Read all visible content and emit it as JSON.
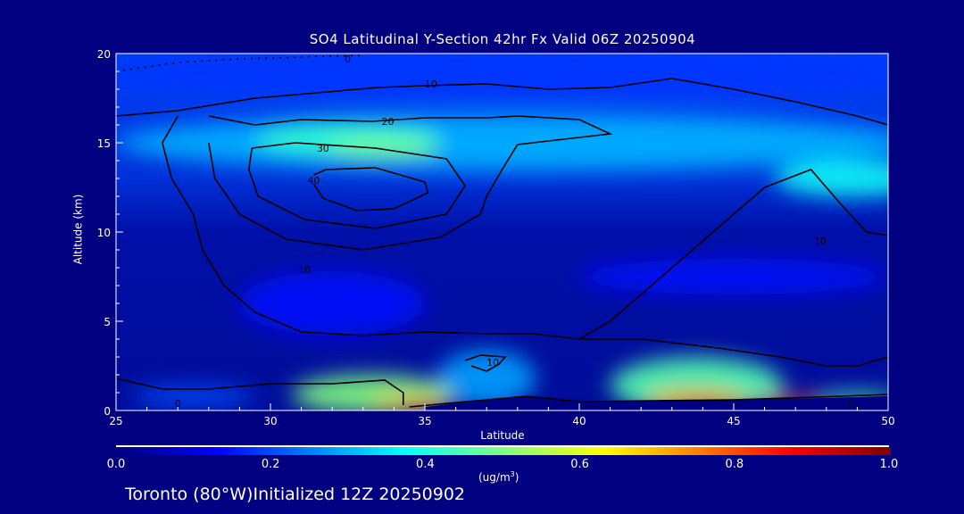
{
  "chart_data": {
    "type": "heatmap",
    "title": "SO4 Latitudinal Y-Section 42hr  Fx Valid 06Z 20250904",
    "xlabel": "Latitude",
    "ylabel": "Altitude (km)",
    "xlim": [
      25,
      50
    ],
    "ylim": [
      0,
      20
    ],
    "xticks": [
      "25",
      "30",
      "35",
      "40",
      "45",
      "50"
    ],
    "yticks": [
      "0",
      "5",
      "10",
      "15",
      "20"
    ],
    "colorbar": {
      "range": [
        0.0,
        1.0
      ],
      "ticks": [
        "0.0",
        "0.2",
        "0.4",
        "0.6",
        "0.8",
        "1.0"
      ],
      "units_label": "(ug/m",
      "units_sup": "3",
      "units_close": ")"
    },
    "concentration_features": [
      {
        "lat": 38,
        "alt": 19,
        "dlat": 14,
        "dalt": 1.5,
        "value": 0.18
      },
      {
        "lat": 38,
        "alt": 15,
        "dlat": 13,
        "dalt": 1.6,
        "value": 0.3
      },
      {
        "lat": 32.5,
        "alt": 15.2,
        "dlat": 3,
        "dalt": 0.9,
        "value": 0.42
      },
      {
        "lat": 33.6,
        "alt": 14.7,
        "dlat": 1.8,
        "dalt": 0.5,
        "value": 0.5
      },
      {
        "lat": 48.8,
        "alt": 13,
        "dlat": 2.5,
        "dalt": 1,
        "value": 0.38
      },
      {
        "lat": 32,
        "alt": 6,
        "dlat": 3,
        "dalt": 1.8,
        "value": 0.14
      },
      {
        "lat": 45,
        "alt": 7.5,
        "dlat": 5,
        "dalt": 1,
        "value": 0.14
      },
      {
        "lat": 37,
        "alt": 1.8,
        "dlat": 1.6,
        "dalt": 1.6,
        "value": 0.28
      },
      {
        "lat": 33.3,
        "alt": 0.9,
        "dlat": 2.6,
        "dalt": 1.1,
        "value": 0.5
      },
      {
        "lat": 34.5,
        "alt": 0.4,
        "dlat": 1.3,
        "dalt": 0.4,
        "value": 0.68
      },
      {
        "lat": 35,
        "alt": 0.15,
        "dlat": 0.8,
        "dalt": 0.2,
        "value": 0.85
      },
      {
        "lat": 43.8,
        "alt": 1.4,
        "dlat": 2.8,
        "dalt": 1.6,
        "value": 0.45
      },
      {
        "lat": 43.8,
        "alt": 0.6,
        "dlat": 1.7,
        "dalt": 0.6,
        "value": 0.7
      },
      {
        "lat": 44,
        "alt": 0.35,
        "dlat": 1.1,
        "dalt": 0.3,
        "value": 0.92
      },
      {
        "lat": 47,
        "alt": 0.45,
        "dlat": 1.4,
        "dalt": 0.3,
        "value": 0.85
      },
      {
        "lat": 49,
        "alt": 0.6,
        "dlat": 1.4,
        "dalt": 0.4,
        "value": 0.45
      },
      {
        "lat": 27.5,
        "alt": 0.8,
        "dlat": 2,
        "dalt": 0.6,
        "value": 0.2
      }
    ],
    "terrain": [
      [
        35,
        0.2
      ],
      [
        37,
        0.6
      ],
      [
        38,
        0.8
      ],
      [
        39,
        0.7
      ],
      [
        40,
        0.5
      ],
      [
        42,
        0.5
      ],
      [
        45,
        0.6
      ],
      [
        48,
        0.7
      ],
      [
        50,
        0.8
      ]
    ],
    "contours": [
      {
        "level": "40",
        "label_at": [
          31.4,
          12.9
        ],
        "points": [
          [
            31.4,
            13.2
          ],
          [
            31.8,
            13.5
          ],
          [
            33.4,
            13.6
          ],
          [
            35,
            12.8
          ],
          [
            35.1,
            12.2
          ],
          [
            34,
            11.3
          ],
          [
            32.8,
            11.2
          ],
          [
            31.7,
            11.9
          ],
          [
            31.4,
            12.7
          ]
        ]
      },
      {
        "level": "30",
        "label_at": [
          31.7,
          14.7
        ],
        "points": [
          [
            29.4,
            14.7
          ],
          [
            30.8,
            15
          ],
          [
            33.4,
            14.7
          ],
          [
            35.7,
            14.1
          ],
          [
            36.3,
            12.6
          ],
          [
            35.7,
            11
          ],
          [
            33.4,
            10.2
          ],
          [
            31.1,
            10.7
          ],
          [
            29.6,
            12
          ],
          [
            29.3,
            13.5
          ],
          [
            29.4,
            14.7
          ]
        ]
      },
      {
        "level": "20",
        "label_at": [
          33.8,
          16.2
        ],
        "points": [
          [
            28,
            16.5
          ],
          [
            29.5,
            16
          ],
          [
            31,
            16.3
          ],
          [
            33.3,
            16.2
          ],
          [
            35,
            16.4
          ],
          [
            37,
            16.4
          ],
          [
            38,
            16.5
          ],
          [
            40,
            16.3
          ],
          [
            41,
            15.5
          ],
          [
            38,
            14.9
          ],
          [
            37.5,
            13.5
          ],
          [
            37,
            12
          ],
          [
            36.8,
            11
          ],
          [
            35.5,
            9.7
          ],
          [
            33,
            9
          ],
          [
            30.5,
            9.6
          ],
          [
            29,
            11
          ],
          [
            28.2,
            13
          ],
          [
            28,
            15
          ]
        ]
      },
      {
        "level": "10",
        "label_at": [
          35.2,
          18.3
        ],
        "points": [
          [
            25,
            16.5
          ],
          [
            27,
            16.8
          ],
          [
            29.5,
            17.5
          ],
          [
            31.5,
            17.8
          ],
          [
            33.5,
            18.1
          ],
          [
            35,
            18.2
          ],
          [
            37,
            18.3
          ],
          [
            39,
            18
          ],
          [
            41,
            18.1
          ],
          [
            43,
            18.6
          ],
          [
            45,
            18
          ],
          [
            47,
            17.3
          ],
          [
            49,
            16.5
          ],
          [
            50,
            16
          ]
        ]
      },
      {
        "level": "10",
        "label_at": [
          31.1,
          7.9
        ],
        "points": [
          [
            27,
            16.5
          ],
          [
            26.5,
            15
          ],
          [
            26.8,
            13
          ],
          [
            27.5,
            11
          ],
          [
            27.8,
            9
          ],
          [
            28.5,
            7
          ],
          [
            29.5,
            5.5
          ],
          [
            31,
            4.4
          ],
          [
            33,
            4.2
          ],
          [
            35,
            4.4
          ],
          [
            37,
            4.3
          ],
          [
            38.5,
            4.3
          ],
          [
            40,
            4
          ],
          [
            42,
            4
          ],
          [
            44.5,
            3.5
          ],
          [
            46.5,
            3
          ],
          [
            48,
            2.5
          ],
          [
            49,
            2.5
          ],
          [
            50,
            3
          ]
        ]
      },
      {
        "level": "10",
        "label_at": [
          37.2,
          2.7
        ],
        "points": [
          [
            36.3,
            2.8
          ],
          [
            36.8,
            3.1
          ],
          [
            37.6,
            3
          ],
          [
            37.4,
            2.6
          ],
          [
            37,
            2.2
          ],
          [
            36.5,
            2.5
          ]
        ]
      },
      {
        "level": "10",
        "label_at": [
          47.8,
          9.5
        ],
        "points": [
          [
            40,
            4
          ],
          [
            41,
            5
          ],
          [
            42,
            6.5
          ],
          [
            43,
            8
          ],
          [
            44,
            9.5
          ],
          [
            45,
            11
          ],
          [
            46,
            12.5
          ],
          [
            47.5,
            13.5
          ],
          [
            48.5,
            11.5
          ],
          [
            49.3,
            10
          ],
          [
            50,
            9.8
          ]
        ]
      },
      {
        "level": "0",
        "label_at": [
          27,
          0.4
        ],
        "points": [
          [
            25,
            1.8
          ],
          [
            26.5,
            1.2
          ],
          [
            28,
            1.2
          ],
          [
            30,
            1.5
          ],
          [
            32,
            1.5
          ],
          [
            33.7,
            1.7
          ],
          [
            34.3,
            1
          ],
          [
            34.3,
            0.3
          ]
        ]
      },
      {
        "level": "0",
        "label_at": [
          48.8,
          0.45
        ],
        "points": [
          [
            34.5,
            0.2
          ],
          [
            37,
            0.6
          ],
          [
            38.3,
            0.8
          ],
          [
            40,
            0.5
          ],
          [
            45,
            0.6
          ],
          [
            47.7,
            0.75
          ],
          [
            50,
            0.9
          ]
        ]
      },
      {
        "level": "0",
        "label_at": [
          32.5,
          19.7
        ],
        "dotted": true,
        "points": [
          [
            25,
            19
          ],
          [
            27,
            19.5
          ],
          [
            29,
            19.7
          ],
          [
            31,
            19.8
          ],
          [
            33,
            19.9
          ]
        ]
      }
    ]
  },
  "footer": "Toronto (80°W)Initialized 12Z 20250902"
}
